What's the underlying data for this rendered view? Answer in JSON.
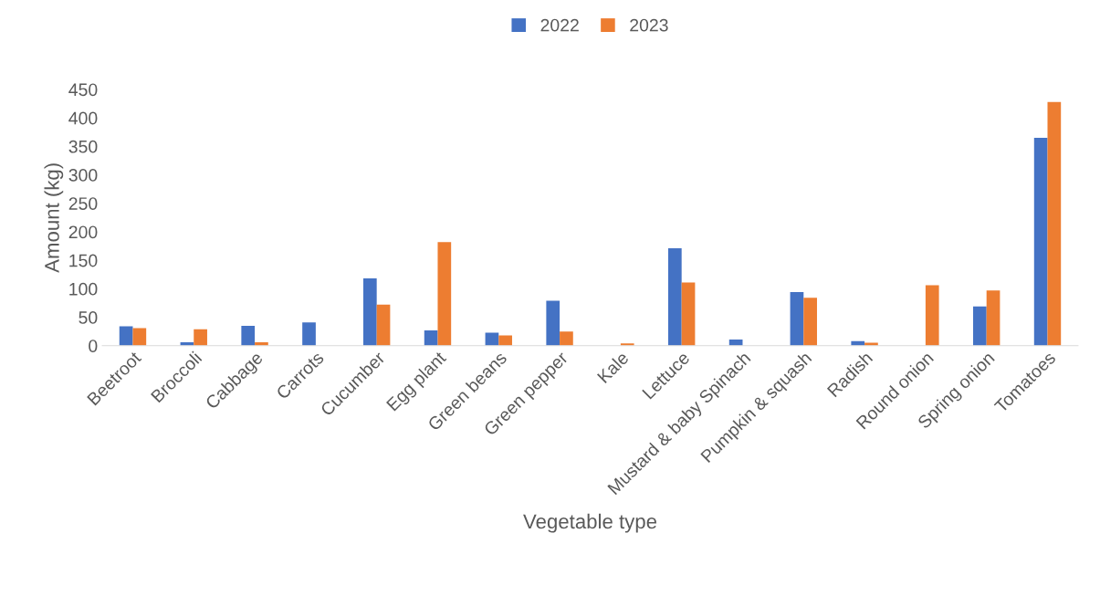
{
  "chart_data": {
    "type": "bar",
    "xlabel": "Vegetable type",
    "ylabel": "Amount (kg)",
    "categories": [
      "Beetroot",
      "Broccoli",
      "Cabbage",
      "Carrots",
      "Cucumber",
      "Egg plant",
      "Green beans",
      "Green pepper",
      "Kale",
      "Lettuce",
      "Mustard & baby Spinach",
      "Pumpkin & squash",
      "Radish",
      "Round onion",
      "Spring onion",
      "Tomatoes"
    ],
    "series": [
      {
        "name": "2022",
        "color": "#4472c4",
        "values": [
          34,
          6,
          35,
          41,
          118,
          27,
          23,
          79,
          0,
          171,
          11,
          94,
          8,
          0,
          69,
          365
        ]
      },
      {
        "name": "2023",
        "color": "#ed7d31",
        "values": [
          31,
          29,
          6,
          0,
          72,
          182,
          18,
          25,
          4,
          111,
          0,
          84,
          5,
          106,
          97,
          428
        ]
      }
    ],
    "ylim": [
      0,
      450
    ],
    "yticks": [
      0,
      50,
      100,
      150,
      200,
      250,
      300,
      350,
      400,
      450
    ],
    "grid": false,
    "legend": "top"
  }
}
